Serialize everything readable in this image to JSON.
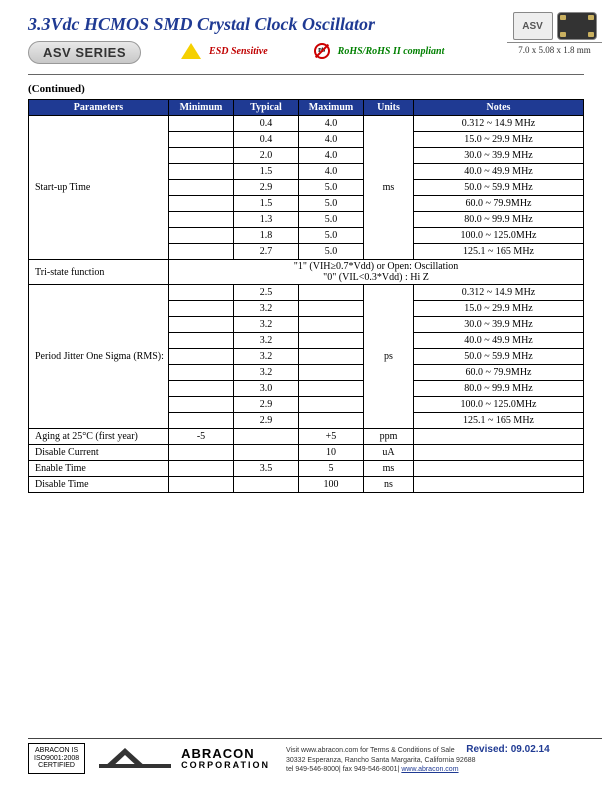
{
  "title": "3.3Vdc HCMOS SMD Crystal Clock Oscillator",
  "series": "ASV SERIES",
  "esd_label": "ESD Sensitive",
  "rohs_label": "RoHS/RoHS II compliant",
  "chip_label": "ASV",
  "dimensions": "7.0 x 5.08 x 1.8 mm",
  "continued": "(Continued)",
  "columns": [
    "Parameters",
    "Minimum",
    "Typical",
    "Maximum",
    "Units",
    "Notes"
  ],
  "startup": {
    "label": "Start-up Time",
    "unit": "ms",
    "rows": [
      {
        "min": "",
        "typ": "0.4",
        "max": "4.0",
        "note": "0.312 ~ 14.9 MHz"
      },
      {
        "min": "",
        "typ": "0.4",
        "max": "4.0",
        "note": "15.0  ~ 29.9 MHz"
      },
      {
        "min": "",
        "typ": "2.0",
        "max": "4.0",
        "note": "30.0 ~ 39.9 MHz"
      },
      {
        "min": "",
        "typ": "1.5",
        "max": "4.0",
        "note": "40.0 ~ 49.9 MHz"
      },
      {
        "min": "",
        "typ": "2.9",
        "max": "5.0",
        "note": "50.0 ~ 59.9 MHz"
      },
      {
        "min": "",
        "typ": "1.5",
        "max": "5.0",
        "note": "60.0 ~ 79.9MHz"
      },
      {
        "min": "",
        "typ": "1.3",
        "max": "5.0",
        "note": "80.0 ~ 99.9 MHz"
      },
      {
        "min": "",
        "typ": "1.8",
        "max": "5.0",
        "note": "100.0 ~ 125.0MHz"
      },
      {
        "min": "",
        "typ": "2.7",
        "max": "5.0",
        "note": "125.1 ~ 165 MHz"
      }
    ]
  },
  "tristate": {
    "label": "Tri-state function",
    "line1": "\"1\" (VIH≥0.7*Vdd) or Open: Oscillation",
    "line2": "\"0\" (VIL<0.3*Vdd) : Hi Z"
  },
  "jitter": {
    "label": "Period Jitter One Sigma (RMS):",
    "unit": "ps",
    "rows": [
      {
        "typ": "2.5",
        "note": "0.312 ~ 14.9 MHz"
      },
      {
        "typ": "3.2",
        "note": "15.0  ~ 29.9 MHz"
      },
      {
        "typ": "3.2",
        "note": "30.0 ~ 39.9 MHz"
      },
      {
        "typ": "3.2",
        "note": "40.0 ~ 49.9 MHz"
      },
      {
        "typ": "3.2",
        "note": "50.0 ~ 59.9 MHz"
      },
      {
        "typ": "3.2",
        "note": "60.0 ~ 79.9MHz"
      },
      {
        "typ": "3.0",
        "note": "80.0 ~ 99.9 MHz"
      },
      {
        "typ": "2.9",
        "note": "100.0 ~ 125.0MHz"
      },
      {
        "typ": "2.9",
        "note": "125.1 ~ 165 MHz"
      }
    ]
  },
  "aging": {
    "label": "Aging at 25°C (first year)",
    "min": "-5",
    "typ": "",
    "max": "+5",
    "unit": "ppm",
    "note": ""
  },
  "disable_current": {
    "label": "Disable Current",
    "min": "",
    "typ": "",
    "max": "10",
    "unit": "uA",
    "note": ""
  },
  "enable_time": {
    "label": "Enable Time",
    "min": "",
    "typ": "3.5",
    "max": "5",
    "unit": "ms",
    "note": ""
  },
  "disable_time": {
    "label": "Disable Time",
    "min": "",
    "typ": "",
    "max": "100",
    "unit": "ns",
    "note": ""
  },
  "footer": {
    "cert1": "ABRACON IS",
    "cert2": "ISO9001:2008",
    "cert3": "CERTIFIED",
    "company": "ABRACON",
    "company_sub": "CORPORATION",
    "terms": "Visit www.abracon.com for Terms & Conditions of Sale",
    "address": "30332 Esperanza, Rancho Santa Margarita, California 92688",
    "phone": "tel 949-546-8000| fax 949-546-8001| ",
    "url": "www.abracon.com",
    "revised": "Revised: 09.02.14"
  }
}
